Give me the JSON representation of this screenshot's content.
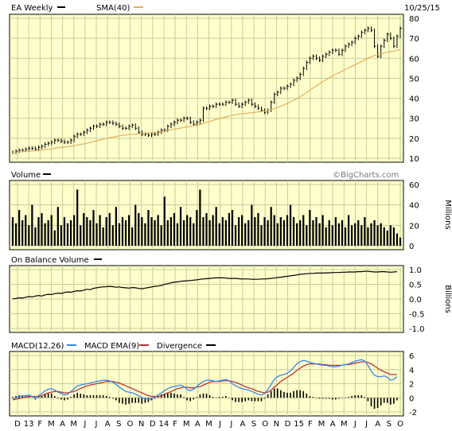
{
  "header": {
    "ticker_label": "EA Weekly",
    "sma_label": "SMA(40)",
    "date": "10/25/15"
  },
  "watermark": "©BigCharts.com",
  "colors": {
    "plot_bg": "#ffffcc",
    "grid": "#c9cc99",
    "price": "#000000",
    "sma": "#e0b060",
    "macd": "#3388ee",
    "macd_ema": "#bb3333",
    "divergence": "#000000",
    "frame": "#000000"
  },
  "x_axis": {
    "labels": [
      "D",
      "13",
      "F",
      "M",
      "A",
      "M",
      "J",
      "J",
      "A",
      "S",
      "O",
      "N",
      "D",
      "14",
      "F",
      "M",
      "A",
      "M",
      "J",
      "J",
      "A",
      "S",
      "O",
      "N",
      "D",
      "15",
      "F",
      "M",
      "A",
      "M",
      "J",
      "J",
      "A",
      "S",
      "O"
    ]
  },
  "panels": {
    "volume": {
      "label": "Volume",
      "unit": "Millions"
    },
    "obv": {
      "label": "On Balance Volume",
      "unit": "Billions"
    },
    "macd": {
      "label_macd": "MACD(12,26)",
      "label_ema": "MACD EMA(9)",
      "label_div": "Divergence"
    }
  },
  "chart_data": [
    {
      "type": "line",
      "title": "EA Weekly",
      "series": [
        {
          "name": "EA Weekly",
          "values": [
            13,
            13.5,
            14,
            14,
            14.5,
            15,
            15,
            14.5,
            15.5,
            16,
            17,
            17.5,
            18,
            19,
            19,
            18.5,
            18,
            18,
            19,
            21,
            22,
            22,
            23,
            24,
            25,
            26,
            26,
            27,
            27,
            28,
            28,
            27.5,
            27,
            26,
            25,
            25,
            26,
            26.5,
            25,
            23,
            22,
            22,
            21.5,
            22,
            22,
            23,
            24,
            24,
            26,
            27,
            28,
            29,
            29,
            30,
            30,
            28,
            27,
            28,
            29,
            35,
            35,
            36,
            36,
            37,
            37,
            37,
            38,
            38,
            39,
            37,
            36,
            37,
            38,
            39,
            37,
            36,
            35,
            34,
            33,
            34,
            38,
            42,
            43,
            45,
            45,
            46,
            47,
            49,
            50,
            52,
            55,
            58,
            60,
            61,
            60,
            59,
            61,
            62,
            63,
            64,
            64,
            62,
            64,
            66,
            67,
            68,
            70,
            71,
            73,
            74,
            75,
            74,
            66,
            61,
            66,
            69,
            72,
            70,
            66,
            71,
            75
          ]
        },
        {
          "name": "SMA(40)",
          "values": [
            13,
            13.1,
            13.2,
            13.3,
            13.4,
            13.5,
            13.6,
            13.7,
            13.9,
            14.1,
            14.3,
            14.5,
            14.7,
            15,
            15.2,
            15.4,
            15.6,
            15.8,
            16,
            16.3,
            16.6,
            16.9,
            17.2,
            17.5,
            17.9,
            18.3,
            18.7,
            19.1,
            19.5,
            19.9,
            20.3,
            20.6,
            20.9,
            21.2,
            21.4,
            21.6,
            21.8,
            22,
            22.1,
            22.2,
            22.3,
            22.4,
            22.6,
            22.8,
            23,
            23.2,
            23.4,
            23.6,
            23.9,
            24.2,
            24.5,
            24.8,
            25.1,
            25.4,
            25.7,
            26,
            26.3,
            26.6,
            26.9,
            27.4,
            27.9,
            28.4,
            28.9,
            29.4,
            29.9,
            30.3,
            30.7,
            31.1,
            31.5,
            31.8,
            32,
            32.2,
            32.4,
            32.6,
            32.8,
            33,
            33.2,
            33.4,
            33.6,
            33.9,
            34.3,
            34.8,
            35.4,
            36,
            36.7,
            37.4,
            38.2,
            39,
            39.9,
            40.8,
            41.8,
            42.9,
            44,
            45.1,
            46.2,
            47.3,
            48.3,
            49.3,
            50.3,
            51.2,
            52,
            52.8,
            53.6,
            54.4,
            55.2,
            56,
            56.8,
            57.6,
            58.4,
            59.2,
            60,
            60.8,
            61.4,
            61.8,
            62.2,
            62.6,
            63,
            63.3,
            63.6,
            64,
            64.4
          ]
        }
      ],
      "ylim": [
        10,
        80
      ],
      "yticks": [
        10,
        20,
        30,
        40,
        50,
        60,
        70,
        80
      ],
      "grid": true,
      "legend": "top-left"
    },
    {
      "type": "bar",
      "title": "Volume",
      "ylabel": "Millions",
      "values": [
        28,
        22,
        35,
        25,
        30,
        20,
        40,
        18,
        28,
        32,
        22,
        25,
        30,
        15,
        38,
        20,
        28,
        22,
        25,
        30,
        55,
        20,
        32,
        28,
        25,
        35,
        22,
        30,
        18,
        28,
        32,
        20,
        38,
        22,
        28,
        25,
        30,
        18,
        40,
        32,
        28,
        22,
        35,
        28,
        25,
        30,
        20,
        48,
        25,
        28,
        32,
        22,
        38,
        25,
        30,
        28,
        22,
        35,
        55,
        28,
        32,
        25,
        30,
        38,
        22,
        28,
        25,
        32,
        35,
        20,
        28,
        30,
        22,
        25,
        40,
        28,
        32,
        20,
        28,
        25,
        38,
        30,
        22,
        28,
        25,
        30,
        40,
        28,
        22,
        25,
        30,
        20,
        35,
        25,
        28,
        22,
        30,
        18,
        25,
        20,
        28,
        22,
        25,
        18,
        30,
        20,
        22,
        25,
        20,
        28,
        18,
        22,
        25,
        20,
        22,
        18,
        15,
        20,
        18,
        12,
        8
      ],
      "ylim": [
        0,
        60
      ],
      "yticks": [
        0,
        20,
        40,
        60
      ],
      "grid": true
    },
    {
      "type": "line",
      "title": "On Balance Volume",
      "ylabel": "Billions",
      "series": [
        {
          "name": "On Balance Volume",
          "values": [
            0.0,
            0.02,
            0.04,
            0.03,
            0.06,
            0.08,
            0.07,
            0.1,
            0.12,
            0.1,
            0.14,
            0.16,
            0.15,
            0.18,
            0.2,
            0.19,
            0.22,
            0.24,
            0.23,
            0.26,
            0.28,
            0.27,
            0.3,
            0.33,
            0.32,
            0.36,
            0.38,
            0.4,
            0.41,
            0.42,
            0.43,
            0.42,
            0.4,
            0.41,
            0.39,
            0.38,
            0.37,
            0.39,
            0.38,
            0.36,
            0.35,
            0.37,
            0.39,
            0.41,
            0.43,
            0.44,
            0.46,
            0.5,
            0.52,
            0.55,
            0.57,
            0.58,
            0.6,
            0.61,
            0.62,
            0.63,
            0.64,
            0.65,
            0.67,
            0.68,
            0.69,
            0.7,
            0.71,
            0.72,
            0.72,
            0.72,
            0.71,
            0.7,
            0.7,
            0.7,
            0.69,
            0.68,
            0.68,
            0.68,
            0.67,
            0.67,
            0.67,
            0.68,
            0.68,
            0.69,
            0.7,
            0.71,
            0.73,
            0.74,
            0.76,
            0.77,
            0.79,
            0.8,
            0.82,
            0.84,
            0.85,
            0.86,
            0.87,
            0.87,
            0.88,
            0.88,
            0.88,
            0.89,
            0.89,
            0.9,
            0.9,
            0.9,
            0.91,
            0.91,
            0.92,
            0.92,
            0.92,
            0.93,
            0.93,
            0.94,
            0.94,
            0.93,
            0.92,
            0.92,
            0.93,
            0.93,
            0.92,
            0.91,
            0.92,
            0.93
          ]
        }
      ],
      "ylim": [
        -1.0,
        1.0
      ],
      "yticks": [
        -1.0,
        -0.5,
        0.0,
        0.5,
        1.0
      ],
      "ytick_labels": [
        "-1.0",
        "-0.5",
        "0.0",
        "0.5",
        "1.0"
      ],
      "grid": true
    },
    {
      "type": "line",
      "title": "MACD(12,26)",
      "series": [
        {
          "name": "MACD(12,26)",
          "values": [
            -0.2,
            0.0,
            0.2,
            0.3,
            0.3,
            0.4,
            0.2,
            0.0,
            0.3,
            0.6,
            1.0,
            1.2,
            1.3,
            1.1,
            0.8,
            0.6,
            0.4,
            0.5,
            0.9,
            1.3,
            1.7,
            1.8,
            1.9,
            2.0,
            2.1,
            2.2,
            2.3,
            2.4,
            2.5,
            2.5,
            2.4,
            2.2,
            1.9,
            1.5,
            1.2,
            0.9,
            0.8,
            0.7,
            0.5,
            0.3,
            0.0,
            -0.1,
            -0.2,
            -0.1,
            0.1,
            0.4,
            0.7,
            1.0,
            1.3,
            1.5,
            1.6,
            1.7,
            1.8,
            1.6,
            1.2,
            1.0,
            1.2,
            1.6,
            2.0,
            2.3,
            2.5,
            2.5,
            2.4,
            2.3,
            2.4,
            2.5,
            2.6,
            2.4,
            2.0,
            1.7,
            1.5,
            1.3,
            1.2,
            1.1,
            0.9,
            0.7,
            0.5,
            0.4,
            0.6,
            1.2,
            1.9,
            2.6,
            3.0,
            3.2,
            3.3,
            3.5,
            3.8,
            4.3,
            4.8,
            5.1,
            5.3,
            5.2,
            5.0,
            4.9,
            4.8,
            4.7,
            4.6,
            4.6,
            4.5,
            4.4,
            4.4,
            4.5,
            4.6,
            4.7,
            4.8,
            5.0,
            5.2,
            5.3,
            5.4,
            5.2,
            4.6,
            3.8,
            3.2,
            3.0,
            3.0,
            3.1,
            2.9,
            2.5,
            2.6,
            3.0
          ]
        },
        {
          "name": "MACD EMA(9)",
          "values": [
            -0.3,
            -0.2,
            -0.1,
            0.0,
            0.1,
            0.2,
            0.2,
            0.2,
            0.2,
            0.3,
            0.5,
            0.7,
            0.8,
            0.9,
            0.9,
            0.8,
            0.7,
            0.7,
            0.8,
            0.9,
            1.1,
            1.3,
            1.5,
            1.7,
            1.8,
            1.9,
            2.0,
            2.1,
            2.2,
            2.3,
            2.3,
            2.3,
            2.2,
            2.1,
            1.9,
            1.7,
            1.5,
            1.3,
            1.1,
            0.9,
            0.7,
            0.5,
            0.3,
            0.2,
            0.2,
            0.2,
            0.3,
            0.5,
            0.7,
            0.9,
            1.1,
            1.3,
            1.4,
            1.5,
            1.5,
            1.4,
            1.4,
            1.5,
            1.6,
            1.8,
            2.0,
            2.2,
            2.3,
            2.3,
            2.3,
            2.4,
            2.4,
            2.4,
            2.3,
            2.2,
            2.0,
            1.8,
            1.6,
            1.4,
            1.3,
            1.1,
            0.9,
            0.8,
            0.7,
            0.8,
            1.1,
            1.5,
            1.9,
            2.3,
            2.6,
            2.9,
            3.2,
            3.5,
            3.9,
            4.2,
            4.5,
            4.7,
            4.8,
            4.8,
            4.8,
            4.8,
            4.7,
            4.7,
            4.6,
            4.6,
            4.6,
            4.6,
            4.6,
            4.7,
            4.7,
            4.8,
            4.9,
            5.0,
            5.1,
            5.1,
            5.0,
            4.8,
            4.5,
            4.2,
            3.9,
            3.7,
            3.5,
            3.3,
            3.3,
            3.3
          ]
        }
      ],
      "ylim": [
        -2,
        6
      ],
      "yticks": [
        -2,
        0,
        2,
        4,
        6
      ],
      "grid": true,
      "legend": "top-left"
    }
  ]
}
